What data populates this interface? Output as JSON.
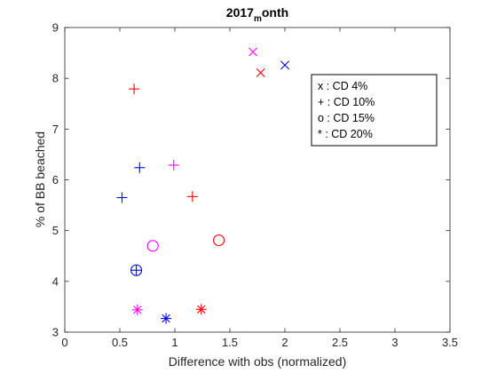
{
  "chart_data": {
    "type": "scatter",
    "title": {
      "prefix": "2017",
      "subscript": "m",
      "suffix": "onth"
    },
    "xlabel": "Difference with obs (normalized)",
    "ylabel": "% of BB beached",
    "xlim": [
      0,
      3.5
    ],
    "ylim": [
      3,
      9
    ],
    "xticks": [
      "0",
      "0.5",
      "1",
      "1.5",
      "2",
      "2.5",
      "3",
      "3.5"
    ],
    "yticks": [
      "3",
      "4",
      "5",
      "6",
      "7",
      "8",
      "9"
    ],
    "grid": false,
    "legend_position": "top-right",
    "legend_entries": [
      "x : CD 4%",
      "+ : CD 10%",
      "o : CD 15%",
      "* : CD 20%"
    ],
    "colors": {
      "red": "#ff0000",
      "blue": "#0000ff",
      "magenta": "#ff00ff"
    },
    "points": [
      {
        "marker": "x",
        "color": "magenta",
        "x": 1.71,
        "y": 8.52
      },
      {
        "marker": "x",
        "color": "blue",
        "x": 2.0,
        "y": 8.26
      },
      {
        "marker": "x",
        "color": "red",
        "x": 1.78,
        "y": 8.11
      },
      {
        "marker": "+",
        "color": "red",
        "x": 0.63,
        "y": 7.79
      },
      {
        "marker": "+",
        "color": "blue",
        "x": 0.68,
        "y": 6.24
      },
      {
        "marker": "+",
        "color": "magenta",
        "x": 0.99,
        "y": 6.29
      },
      {
        "marker": "+",
        "color": "blue",
        "x": 0.52,
        "y": 5.65
      },
      {
        "marker": "+",
        "color": "red",
        "x": 1.16,
        "y": 5.67
      },
      {
        "marker": "o",
        "color": "red",
        "x": 1.4,
        "y": 4.81
      },
      {
        "marker": "o",
        "color": "magenta",
        "x": 0.8,
        "y": 4.7
      },
      {
        "marker": "o",
        "color": "blue",
        "x": 0.65,
        "y": 4.22
      },
      {
        "marker": "+",
        "color": "blue",
        "x": 0.65,
        "y": 4.22
      },
      {
        "marker": "*",
        "color": "magenta",
        "x": 0.66,
        "y": 3.44
      },
      {
        "marker": "*",
        "color": "red",
        "x": 1.24,
        "y": 3.45
      },
      {
        "marker": "*",
        "color": "blue",
        "x": 0.92,
        "y": 3.27
      }
    ]
  }
}
